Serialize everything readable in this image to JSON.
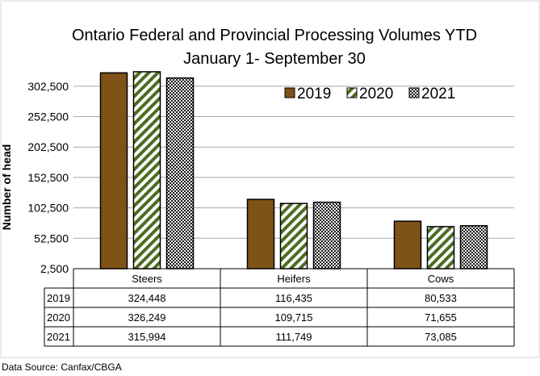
{
  "chart_data": {
    "type": "bar",
    "title": "Ontario Federal and Provincial  Processing Volumes YTD",
    "subtitle": "January 1- September 30",
    "ylabel": "Number of head",
    "xlabel": "",
    "categories": [
      "Steers",
      "Heifers",
      "Cows"
    ],
    "series": [
      {
        "name": "2019",
        "values": [
          324448,
          116435,
          80533
        ],
        "labels": [
          "324,448",
          "116,435",
          "80,533"
        ],
        "color": "#7f5218",
        "pattern": "solid"
      },
      {
        "name": "2020",
        "values": [
          326249,
          109715,
          71655
        ],
        "labels": [
          "326,249",
          "109,715",
          "71,655"
        ],
        "color": "#4e6b1f",
        "pattern": "diagonal-stripes"
      },
      {
        "name": "2021",
        "values": [
          315994,
          111749,
          73085
        ],
        "labels": [
          "315,994",
          "111,749",
          "73,085"
        ],
        "color": "#333333",
        "pattern": "checkered"
      }
    ],
    "ylim": [
      2500,
      327500
    ],
    "yticks": [
      2500,
      52500,
      102500,
      152500,
      202500,
      252500,
      302500
    ],
    "ytick_labels": [
      "2,500",
      "52,500",
      "102,500",
      "152,500",
      "202,500",
      "252,500",
      "302,500"
    ],
    "grid": true,
    "legend_position": "top-right",
    "data_table": true
  },
  "source_note": "Data Source: Canfax/CBGA"
}
